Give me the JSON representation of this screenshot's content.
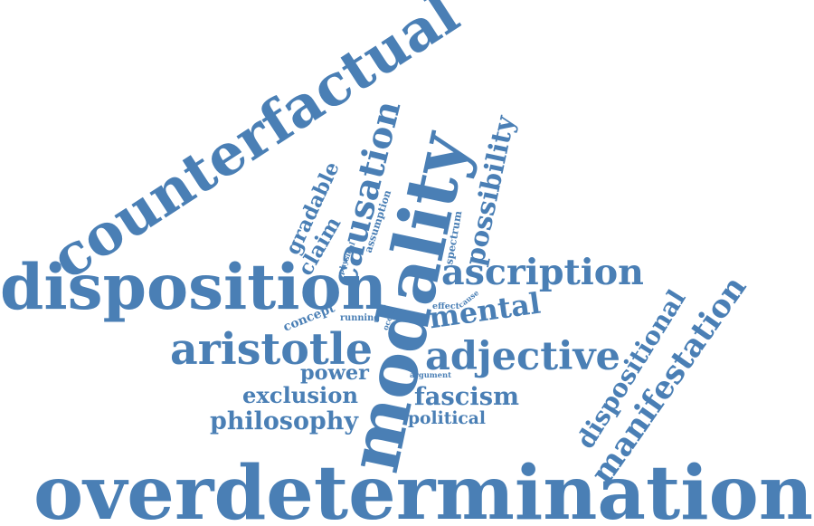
{
  "color": "#4a7fb5",
  "words": [
    {
      "name": "word-overdetermination",
      "text": "overdetermination",
      "weight": 10
    },
    {
      "name": "word-disposition",
      "text": "disposition",
      "weight": 9
    },
    {
      "name": "word-counterfactual",
      "text": "counterfactual",
      "weight": 9
    },
    {
      "name": "word-modality",
      "text": "modality",
      "weight": 8
    },
    {
      "name": "word-causation",
      "text": "causation",
      "weight": 6
    },
    {
      "name": "word-aristotle",
      "text": "aristotle",
      "weight": 6
    },
    {
      "name": "word-adjective",
      "text": "adjective",
      "weight": 6
    },
    {
      "name": "word-ascription",
      "text": "ascription",
      "weight": 6
    },
    {
      "name": "word-manifestation",
      "text": "manifestation",
      "weight": 5
    },
    {
      "name": "word-dispositional",
      "text": "dispositional",
      "weight": 5
    },
    {
      "name": "word-possibility",
      "text": "possibility",
      "weight": 4
    },
    {
      "name": "word-mental",
      "text": "mental",
      "weight": 4
    },
    {
      "name": "word-exclusion",
      "text": "exclusion",
      "weight": 3
    },
    {
      "name": "word-philosophy",
      "text": "philosophy",
      "weight": 3
    },
    {
      "name": "word-fascism",
      "text": "fascism",
      "weight": 3
    },
    {
      "name": "word-power",
      "text": "power",
      "weight": 3
    },
    {
      "name": "word-political",
      "text": "political",
      "weight": 2
    },
    {
      "name": "word-gradable",
      "text": "gradable",
      "weight": 2
    },
    {
      "name": "word-claim",
      "text": "claim",
      "weight": 2
    },
    {
      "name": "word-spectrum",
      "text": "spectrum",
      "weight": 1
    },
    {
      "name": "word-assumption",
      "text": "assumption",
      "weight": 1
    },
    {
      "name": "word-concept",
      "text": "concept",
      "weight": 1
    },
    {
      "name": "word-running",
      "text": "running",
      "weight": 1
    },
    {
      "name": "word-physical",
      "text": "physical",
      "weight": 1
    },
    {
      "name": "word-occur",
      "text": "occur",
      "weight": 1
    },
    {
      "name": "word-effect",
      "text": "effect",
      "weight": 1
    },
    {
      "name": "word-cause",
      "text": "cause",
      "weight": 1
    },
    {
      "name": "word-argument",
      "text": "argument",
      "weight": 1
    }
  ]
}
